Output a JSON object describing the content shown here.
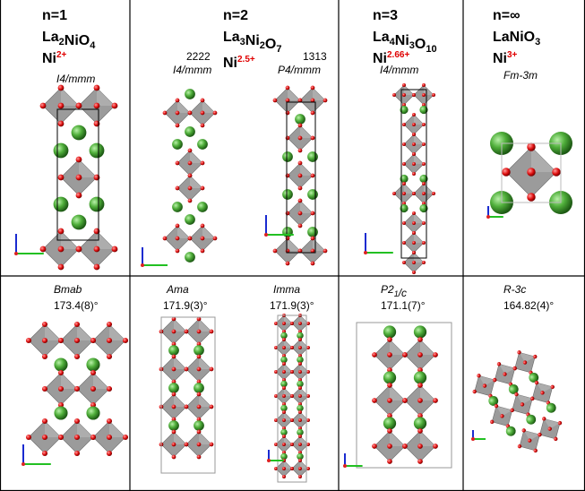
{
  "cells": [
    {
      "n": "n=1",
      "formula": [
        [
          "La",
          "2"
        ],
        [
          "Ni"
        ],
        [
          "O",
          "4"
        ]
      ],
      "ion": "Ni",
      "charge": "2+",
      "space_groups": [
        {
          "name": "I4/mmm"
        }
      ],
      "distorted": [
        {
          "group": [
            [
              "Bmab"
            ]
          ],
          "angle": "173.4(8)°"
        }
      ]
    },
    {
      "n": "n=2",
      "formula": [
        [
          "La",
          "3"
        ],
        [
          "Ni",
          "2"
        ],
        [
          "O",
          "7"
        ]
      ],
      "ion": "Ni",
      "charge": "2.5+",
      "space_groups": [
        {
          "label": "2222",
          "name": "I4/mmm"
        },
        {
          "label": "1313",
          "name": "P4/mmm"
        }
      ],
      "distorted": [
        {
          "group": [
            [
              "Ama"
            ]
          ],
          "angle": "171.9(3)°"
        },
        {
          "group": [
            [
              "Imma"
            ]
          ],
          "angle": "171.9(3)°"
        }
      ]
    },
    {
      "n": "n=3",
      "formula": [
        [
          "La",
          "4"
        ],
        [
          "Ni",
          "3"
        ],
        [
          "O",
          "10"
        ]
      ],
      "ion": "Ni",
      "charge": "2.66+",
      "space_groups": [
        {
          "name": "I4/mmm"
        }
      ],
      "distorted": [
        {
          "group": [
            [
              "P2",
              "1"
            ],
            [
              "/c"
            ]
          ],
          "angle": "171.1(7)°"
        }
      ]
    },
    {
      "n": "n=∞",
      "formula": [
        [
          "LaNiO",
          "3"
        ]
      ],
      "ion": "Ni",
      "charge": "3+",
      "space_groups": [
        {
          "name": "Fm-3m"
        }
      ],
      "distorted": [
        {
          "group": [
            [
              "R-3c"
            ]
          ],
          "angle": "164.82(4)°"
        }
      ]
    }
  ]
}
